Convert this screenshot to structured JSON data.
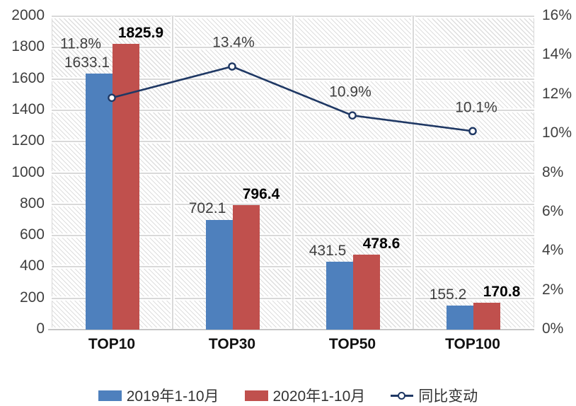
{
  "colors": {
    "bar_2019": "#4e80bd",
    "bar_2020": "#c0504d",
    "line": "#1f3864",
    "grid": "#d9d9d9",
    "axis_text": "#3f3f3f",
    "bold_label": "#000000"
  },
  "chart_data": {
    "type": "combo-bar-line",
    "title": "",
    "categories": [
      "TOP10",
      "TOP30",
      "TOP50",
      "TOP100"
    ],
    "series": [
      {
        "name": "2019年1-10月",
        "type": "bar",
        "axis": "left",
        "color": "#4e80bd",
        "values": [
          1633.1,
          702.1,
          431.5,
          155.2
        ]
      },
      {
        "name": "2020年1-10月",
        "type": "bar",
        "axis": "left",
        "color": "#c0504d",
        "values": [
          1825.9,
          796.4,
          478.6,
          170.8
        ]
      },
      {
        "name": "同比变动",
        "type": "line",
        "axis": "right",
        "color": "#1f3864",
        "marker": "open-circle",
        "values": [
          11.8,
          13.4,
          10.9,
          10.1
        ],
        "unit": "%"
      }
    ],
    "left_axis": {
      "min": 0,
      "max": 2000,
      "step": 200
    },
    "right_axis": {
      "min": 0,
      "max": 16,
      "step": 2,
      "unit": "%"
    },
    "grid": true,
    "plot_area_pattern": "diagonal-hatch",
    "legend_position": "bottom"
  }
}
